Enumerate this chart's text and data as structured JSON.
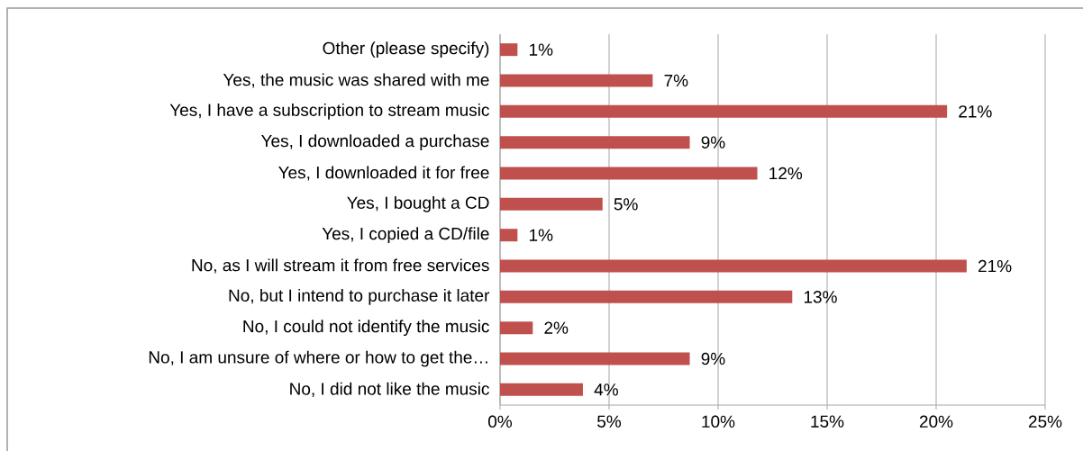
{
  "chart_data": {
    "type": "bar",
    "orientation": "horizontal",
    "categories": [
      "Other (please specify)",
      "Yes, the music was shared with me",
      "Yes, I have a subscription to stream music",
      "Yes, I downloaded a purchase",
      "Yes, I downloaded it for free",
      "Yes, I bought a CD",
      "Yes, I copied a CD/file",
      "No, as I will stream it from free services",
      "No, but I intend to purchase it later",
      "No, I could not identify the music",
      "No, I am unsure of where or how to get the…",
      "No, I did not like the music"
    ],
    "values": [
      0.8,
      7.0,
      20.5,
      8.7,
      11.8,
      4.7,
      0.8,
      21.4,
      13.4,
      1.5,
      8.7,
      3.8
    ],
    "value_labels": [
      "1%",
      "7%",
      "21%",
      "9%",
      "12%",
      "5%",
      "1%",
      "21%",
      "13%",
      "2%",
      "9%",
      "4%"
    ],
    "color": "#c0504d",
    "xlim": [
      0,
      25
    ],
    "xticks": [
      {
        "value": 0,
        "label": "0%"
      },
      {
        "value": 5,
        "label": "5%"
      },
      {
        "value": 10,
        "label": "10%"
      },
      {
        "value": 15,
        "label": "15%"
      },
      {
        "value": 20,
        "label": "20%"
      },
      {
        "value": 25,
        "label": "25%"
      }
    ],
    "grid": "x"
  }
}
